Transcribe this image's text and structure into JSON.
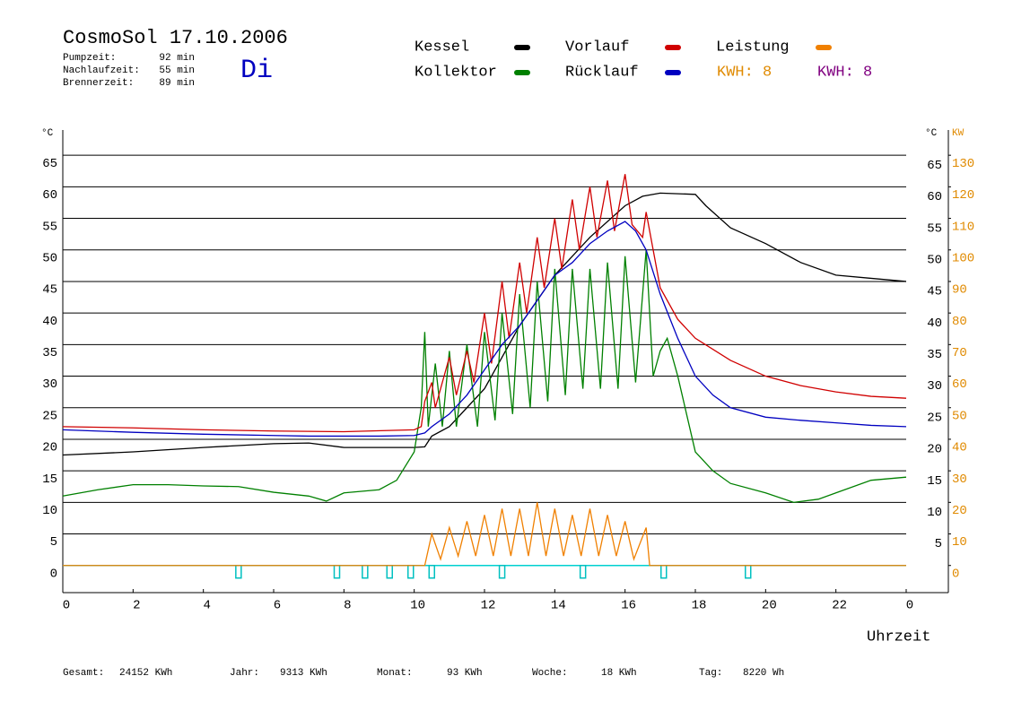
{
  "title": "CosmoSol 17.10.2006",
  "weekday": "Di",
  "info": [
    [
      "Pumpzeit:",
      "92 min"
    ],
    [
      "Nachlaufzeit:",
      "55 min"
    ],
    [
      "Brennerzeit:",
      "89 min"
    ]
  ],
  "kwh": [
    {
      "label": "KWH: 8",
      "color": "#e08a00"
    },
    {
      "label": "KWH: 8",
      "color": "#800080"
    }
  ],
  "footer": [
    [
      "Gesamt:",
      "24152 KWh"
    ],
    [
      "Jahr:",
      "9313 KWh"
    ],
    [
      "Monat:",
      "93 KWh"
    ],
    [
      "Woche:",
      "18 KWh"
    ],
    [
      "Tag:",
      "8220 Wh"
    ]
  ],
  "chart_data": {
    "type": "line",
    "x_label": "Uhrzeit",
    "y_unit": "°C",
    "y2_unit_c": "°C",
    "y2_unit": "KW",
    "xlim": [
      0,
      25.2
    ],
    "xticks": [
      0,
      2,
      4,
      6,
      8,
      10,
      12,
      14,
      16,
      18,
      20,
      22,
      {
        "value": 24,
        "label": "0"
      }
    ],
    "ylim": [
      -4.3,
      69
    ],
    "yticks": [
      0,
      5,
      10,
      15,
      20,
      25,
      30,
      35,
      40,
      45,
      50,
      55,
      60,
      65
    ],
    "yticks_right": [
      5,
      10,
      15,
      20,
      25,
      30,
      35,
      40,
      45,
      50,
      55,
      60,
      65
    ],
    "y2lim": [
      -8.6,
      138
    ],
    "y2ticks": [
      0,
      10,
      20,
      30,
      40,
      50,
      60,
      70,
      80,
      90,
      100,
      110,
      120,
      130
    ],
    "grid": true,
    "event_x": [
      5,
      7.8,
      8.6,
      9.3,
      9.9,
      10.5,
      12.5,
      14.8,
      17.1,
      19.5
    ],
    "series": [
      {
        "name": "Kessel",
        "color": "#000000",
        "x": [
          0,
          2,
          4,
          6,
          7,
          8,
          10,
          10.3,
          10.5,
          11,
          12,
          13,
          14,
          15,
          16,
          16.5,
          17,
          18,
          18.3,
          19,
          20,
          21,
          22,
          23,
          24
        ],
        "values": [
          17.5,
          18,
          18.7,
          19.3,
          19.4,
          18.7,
          18.7,
          18.8,
          20.5,
          22,
          28,
          38,
          46,
          52,
          57,
          58.5,
          59,
          58.8,
          57,
          53.5,
          51,
          48,
          46,
          45.5,
          45
        ]
      },
      {
        "name": "Kollektor",
        "color": "#008000",
        "x": [
          0,
          1,
          2,
          3,
          4,
          5,
          6,
          7,
          7.5,
          8,
          9,
          9.5,
          10,
          10.2,
          10.3,
          10.4,
          10.6,
          10.8,
          11,
          11.2,
          11.5,
          11.8,
          12,
          12.3,
          12.5,
          12.8,
          13,
          13.3,
          13.5,
          13.8,
          14,
          14.3,
          14.5,
          14.8,
          15,
          15.3,
          15.5,
          15.8,
          16,
          16.3,
          16.6,
          16.8,
          17,
          17.2,
          17.5,
          18,
          18.5,
          19,
          20,
          20.8,
          21.5,
          22,
          23,
          24
        ],
        "values": [
          11,
          12,
          12.8,
          12.8,
          12.6,
          12.5,
          11.6,
          11,
          10.2,
          11.5,
          12,
          13.5,
          18,
          25,
          37,
          22,
          32,
          22,
          34,
          22,
          35,
          22,
          37,
          23,
          40,
          24,
          43,
          25,
          45,
          26,
          47,
          27,
          47,
          28,
          47,
          28,
          48,
          28,
          49,
          29,
          50,
          30,
          34,
          36,
          30,
          18,
          15,
          13,
          11.5,
          10,
          10.5,
          11.5,
          13.5,
          14
        ]
      },
      {
        "name": "Vorlauf",
        "color": "#d00000",
        "x": [
          0,
          2,
          4,
          6,
          8,
          10,
          10.2,
          10.3,
          10.5,
          10.6,
          11,
          11.2,
          11.5,
          11.7,
          12,
          12.2,
          12.5,
          12.7,
          13,
          13.2,
          13.5,
          13.7,
          14,
          14.2,
          14.5,
          14.7,
          15,
          15.2,
          15.5,
          15.7,
          16,
          16.2,
          16.5,
          16.6,
          16.8,
          17,
          17.5,
          18,
          19,
          20,
          21,
          22,
          23,
          24
        ],
        "values": [
          22,
          21.8,
          21.5,
          21.3,
          21.2,
          21.5,
          22,
          26,
          29,
          25,
          33,
          27,
          34,
          29,
          40,
          32,
          45,
          36,
          48,
          40,
          52,
          44,
          55,
          47,
          58,
          50,
          60,
          52,
          61,
          53,
          62,
          54,
          52,
          56,
          50,
          44,
          39,
          36,
          32.5,
          30,
          28.5,
          27.5,
          26.8,
          26.5
        ]
      },
      {
        "name": "Rücklauf",
        "color": "#0000c0",
        "x": [
          0,
          2,
          4,
          6,
          7,
          9,
          10,
          10.3,
          10.5,
          11,
          11.5,
          12,
          12.5,
          13,
          13.5,
          14,
          14.5,
          15,
          15.5,
          16,
          16.3,
          16.6,
          17,
          17.5,
          18,
          18.5,
          19,
          20,
          21,
          22,
          23,
          24
        ],
        "values": [
          21.5,
          21.1,
          20.8,
          20.6,
          20.5,
          20.5,
          20.6,
          21,
          22,
          24,
          27,
          31,
          35,
          38,
          42,
          46,
          48,
          51,
          53,
          54.5,
          53,
          50,
          43,
          36,
          30,
          27,
          25,
          23.5,
          23,
          22.6,
          22.2,
          22
        ]
      },
      {
        "name": "Leistung",
        "color": "#f08000",
        "axis": "y2",
        "x": [
          0,
          10.3,
          10.5,
          10.75,
          11,
          11.25,
          11.5,
          11.75,
          12,
          12.25,
          12.5,
          12.75,
          13,
          13.25,
          13.5,
          13.75,
          14,
          14.25,
          14.5,
          14.75,
          15,
          15.25,
          15.5,
          15.75,
          16,
          16.25,
          16.6,
          16.7,
          24
        ],
        "values": [
          0,
          0,
          10,
          2,
          12,
          3,
          14,
          3,
          16,
          3,
          18,
          3,
          18,
          3,
          20,
          3,
          18,
          3,
          16,
          3,
          18,
          3,
          16,
          3,
          14,
          2,
          12,
          0,
          0
        ]
      }
    ]
  }
}
